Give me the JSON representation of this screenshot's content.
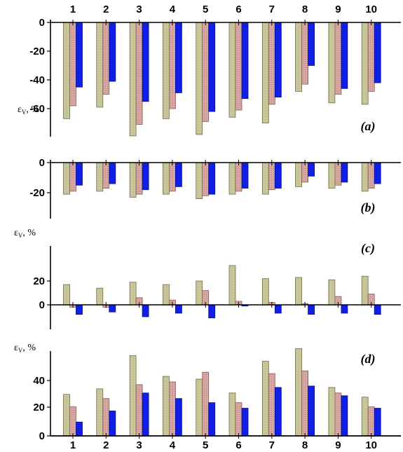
{
  "colors": {
    "series1": "#c9c79a",
    "series2": "#d8a8a4",
    "series3": "#0f1fe6"
  },
  "chart_data": [
    {
      "type": "bar",
      "panel_label": "(a)",
      "ylabel": "ε_V, %",
      "ylabel_main": "ε",
      "ylabel_sub": "V",
      "ylabel_tail": ", %",
      "categories": [
        "1",
        "2",
        "3",
        "4",
        "5",
        "6",
        "7",
        "8",
        "9",
        "10"
      ],
      "categories_position": "top",
      "yticks": [
        "0",
        "-20",
        "-40",
        "-60"
      ],
      "ylim": [
        -73,
        0
      ],
      "series": [
        {
          "values": [
            -67,
            -59,
            -79,
            -67,
            -78,
            -66,
            -70,
            -48,
            -56,
            -57
          ]
        },
        {
          "values": [
            -58,
            -50,
            -71,
            -60,
            -69,
            -61,
            -57,
            -43,
            -50,
            -48
          ]
        },
        {
          "values": [
            -45,
            -41,
            -55,
            -49,
            -62,
            -53,
            -52,
            -30,
            -46,
            -42
          ]
        }
      ]
    },
    {
      "type": "bar",
      "panel_label": "(b)",
      "categories": [
        "1",
        "2",
        "3",
        "4",
        "5",
        "6",
        "7",
        "8",
        "9",
        "10"
      ],
      "yticks": [
        "0",
        "-20"
      ],
      "ylim": [
        -36,
        0
      ],
      "series": [
        {
          "values": [
            -21,
            -19,
            -23,
            -21,
            -24,
            -21,
            -21,
            -16,
            -17,
            -19
          ]
        },
        {
          "values": [
            -19,
            -17,
            -21,
            -19,
            -22,
            -19,
            -18,
            -13,
            -15,
            -17
          ]
        },
        {
          "values": [
            -15,
            -14,
            -18,
            -16,
            -21,
            -17,
            -17,
            -9,
            -13,
            -14
          ]
        }
      ]
    },
    {
      "type": "bar",
      "panel_label": "(c)",
      "ylabel": "ε_V, %",
      "ylabel_main": "ε",
      "ylabel_sub": "V",
      "ylabel_tail": ", %",
      "categories": [
        "1",
        "2",
        "3",
        "4",
        "5",
        "6",
        "7",
        "8",
        "9",
        "10"
      ],
      "yticks": [
        "20",
        "0"
      ],
      "ylim": [
        -18,
        38
      ],
      "series": [
        {
          "values": [
            17,
            14,
            19,
            17,
            20,
            33,
            22,
            23,
            21,
            24
          ]
        },
        {
          "values": [
            -2,
            -2,
            6,
            4,
            12,
            3,
            2,
            1,
            7,
            9
          ]
        },
        {
          "values": [
            -8,
            -6,
            -10,
            -7,
            -11,
            -1,
            -7,
            -8,
            -7,
            -8
          ]
        }
      ]
    },
    {
      "type": "bar",
      "panel_label": "(d)",
      "ylabel": "ε_V, %",
      "ylabel_main": "ε",
      "ylabel_sub": "V",
      "ylabel_tail": ", %",
      "categories": [
        "1",
        "2",
        "3",
        "4",
        "5",
        "6",
        "7",
        "8",
        "9",
        "10"
      ],
      "categories_position": "bottom",
      "yticks": [
        "40",
        "20",
        "0"
      ],
      "ylim": [
        0,
        65
      ],
      "series": [
        {
          "values": [
            30,
            34,
            58,
            43,
            41,
            31,
            54,
            63,
            35,
            28
          ]
        },
        {
          "values": [
            21,
            27,
            37,
            39,
            46,
            24,
            45,
            47,
            31,
            21
          ]
        },
        {
          "values": [
            10,
            18,
            31,
            27,
            24,
            20,
            35,
            36,
            29,
            20
          ]
        }
      ]
    }
  ]
}
